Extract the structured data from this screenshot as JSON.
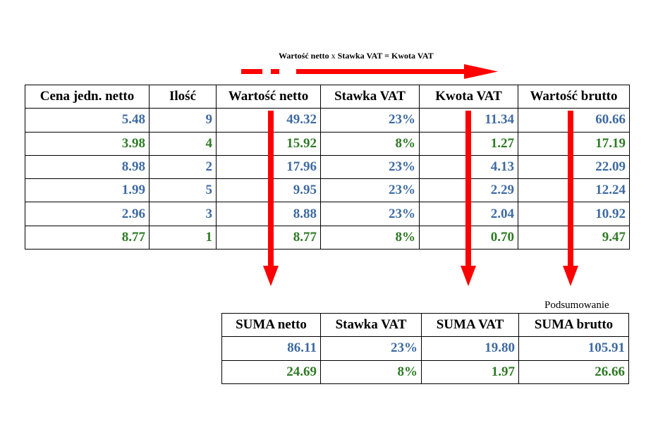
{
  "formula": {
    "left": "Wartość netto",
    "op_mul": "x",
    "mid": "Stawka VAT",
    "op_eq": "=",
    "right": "Kwota VAT"
  },
  "main_table": {
    "headers": [
      "Cena jedn. netto",
      "Ilość",
      "Wartość netto",
      "Stawka VAT",
      "Kwota VAT",
      "Wartość brutto"
    ],
    "rows": [
      {
        "cells": [
          "5.48",
          "9",
          "49.32",
          "23%",
          "11.34",
          "60.66"
        ],
        "color": "#3d6aa2"
      },
      {
        "cells": [
          "3.98",
          "4",
          "15.92",
          "8%",
          "1.27",
          "17.19"
        ],
        "color": "#2e7a24"
      },
      {
        "cells": [
          "8.98",
          "2",
          "17.96",
          "23%",
          "4.13",
          "22.09"
        ],
        "color": "#3d6aa2"
      },
      {
        "cells": [
          "1.99",
          "5",
          "9.95",
          "23%",
          "2.29",
          "12.24"
        ],
        "color": "#3d6aa2"
      },
      {
        "cells": [
          "2.96",
          "3",
          "8.88",
          "23%",
          "2.04",
          "10.92"
        ],
        "color": "#3d6aa2"
      },
      {
        "cells": [
          "8.77",
          "1",
          "8.77",
          "8%",
          "0.70",
          "9.47"
        ],
        "color": "#2e7a24"
      }
    ]
  },
  "summary": {
    "label": "Podsumowanie",
    "headers": [
      "SUMA netto",
      "Stawka VAT",
      "SUMA VAT",
      "SUMA brutto"
    ],
    "rows": [
      {
        "cells": [
          "86.11",
          "23%",
          "19.80",
          "105.91"
        ],
        "color": "#3d6aa2"
      },
      {
        "cells": [
          "24.69",
          "8%",
          "1.97",
          "26.66"
        ],
        "color": "#2e7a24"
      }
    ]
  },
  "colors": {
    "arrow": "#ff0000",
    "blue_text": "#3d6aa2",
    "green_text": "#2e7a24"
  }
}
